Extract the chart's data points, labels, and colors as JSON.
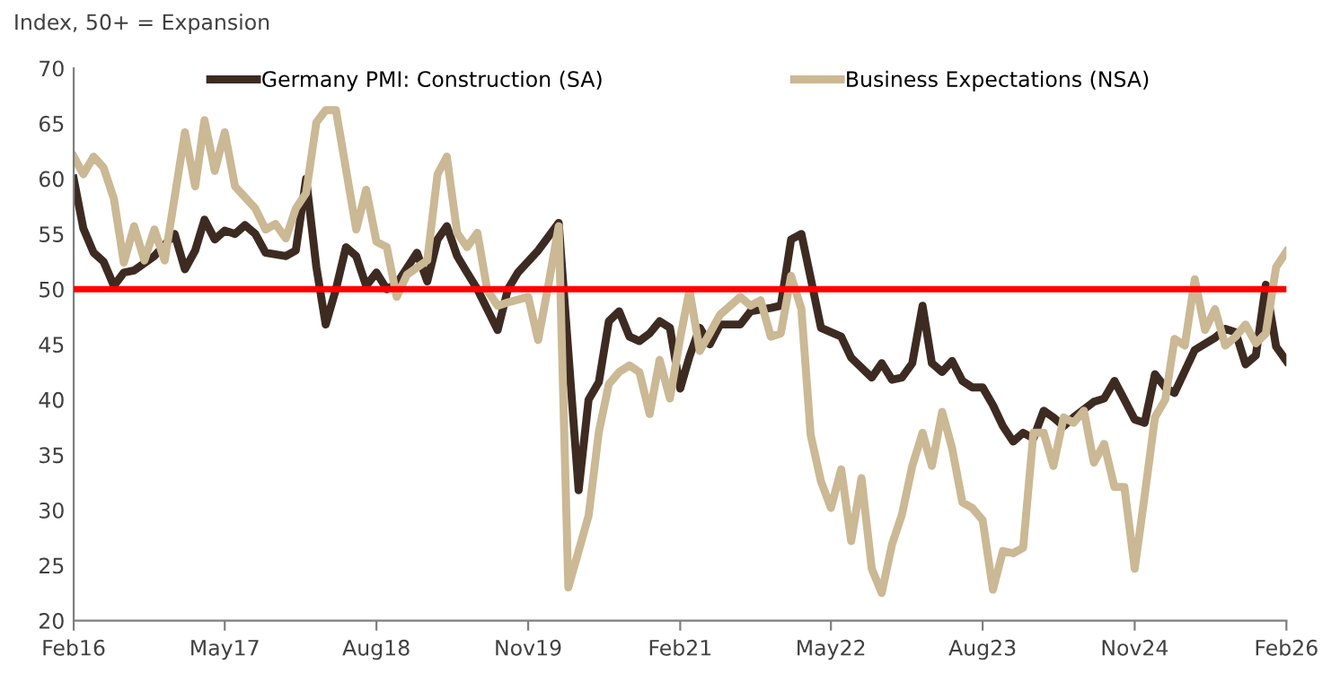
{
  "chart_data": {
    "type": "line",
    "ylabel": "Index, 50+ = Expansion",
    "xlim": [
      "2016-02",
      "2026-02"
    ],
    "xticks": [
      {
        "value": "2016-02",
        "label": "Feb16"
      },
      {
        "value": "2017-05",
        "label": "May17"
      },
      {
        "value": "2018-08",
        "label": "Aug18"
      },
      {
        "value": "2019-11",
        "label": "Nov19"
      },
      {
        "value": "2021-02",
        "label": "Feb21"
      },
      {
        "value": "2022-05",
        "label": "May22"
      },
      {
        "value": "2023-08",
        "label": "Aug23"
      },
      {
        "value": "2024-11",
        "label": "Nov24"
      },
      {
        "value": "2026-02",
        "label": "Feb26"
      }
    ],
    "ylim": [
      20,
      70
    ],
    "yticks": [
      20,
      25,
      30,
      35,
      40,
      45,
      50,
      55,
      60,
      65,
      70
    ],
    "grid": false,
    "legend": "top",
    "marker": "none",
    "line_style": "solid",
    "ref_lines": [
      {
        "axis": "y",
        "value": 50,
        "color": "#ff0000"
      }
    ],
    "series": [
      {
        "name": "Germany PMI: Construction (SA)",
        "color": "#3d2b22",
        "x": [
          "2016-02",
          "2016-03",
          "2016-04",
          "2016-05",
          "2016-06",
          "2016-07",
          "2016-08",
          "2016-10",
          "2016-12",
          "2017-01",
          "2017-02",
          "2017-03",
          "2017-04",
          "2017-05",
          "2017-06",
          "2017-07",
          "2017-08",
          "2017-09",
          "2017-11",
          "2017-12",
          "2018-01",
          "2018-02",
          "2018-03",
          "2018-04",
          "2018-05",
          "2018-06",
          "2018-07",
          "2018-08",
          "2018-09",
          "2018-10",
          "2018-12",
          "2019-01",
          "2019-02",
          "2019-03",
          "2019-04",
          "2019-05",
          "2019-06",
          "2019-08",
          "2019-09",
          "2019-10",
          "2019-12",
          "2020-02",
          "2020-04",
          "2020-05",
          "2020-06",
          "2020-07",
          "2020-08",
          "2020-09",
          "2020-10",
          "2020-11",
          "2020-12",
          "2021-01",
          "2021-02",
          "2021-03",
          "2021-04",
          "2021-05",
          "2021-06",
          "2021-08",
          "2021-09",
          "2021-11",
          "2021-12",
          "2022-01",
          "2022-02",
          "2022-03",
          "2022-04",
          "2022-06",
          "2022-07",
          "2022-09",
          "2022-10",
          "2022-11",
          "2022-12",
          "2023-01",
          "2023-02",
          "2023-03",
          "2023-04",
          "2023-05",
          "2023-06",
          "2023-07",
          "2023-08",
          "2023-09",
          "2023-10",
          "2023-11",
          "2023-12",
          "2024-01",
          "2024-02",
          "2024-03",
          "2024-04",
          "2024-05",
          "2024-07",
          "2024-08",
          "2024-09",
          "2024-10",
          "2024-11",
          "2024-12",
          "2025-01",
          "2025-02",
          "2025-03",
          "2025-05",
          "2025-07",
          "2025-08",
          "2025-09",
          "2025-10",
          "2025-11",
          "2025-12",
          "2026-01",
          "2026-02"
        ],
        "values": [
          60,
          55.5,
          53.3,
          52.5,
          50.3,
          51.5,
          51.7,
          53,
          55,
          51.8,
          53.5,
          56.3,
          54.5,
          55.3,
          55,
          55.8,
          55,
          53.3,
          53,
          53.5,
          60,
          52,
          46.8,
          50,
          53.8,
          53,
          50.3,
          51.5,
          50,
          50.5,
          53.3,
          50.7,
          54.5,
          55.7,
          53,
          51.5,
          50,
          46.3,
          50,
          51.5,
          53.5,
          56,
          31.8,
          40,
          41.6,
          47.1,
          48,
          45.7,
          45.3,
          46,
          47.1,
          46.5,
          41,
          43.9,
          46.5,
          45,
          46.8,
          46.8,
          48,
          48.3,
          48.5,
          54.5,
          55,
          51,
          46.5,
          45.7,
          43.8,
          42,
          43.3,
          41.8,
          42,
          43.3,
          48.5,
          43.3,
          42.5,
          43.5,
          41.7,
          41.1,
          41.1,
          39.5,
          37.6,
          36.2,
          37,
          36.5,
          39,
          38.4,
          37.6,
          38.4,
          39.8,
          40.1,
          41.7,
          40,
          38.2,
          37.9,
          42.3,
          41.1,
          40.6,
          44.5,
          45.6,
          46.4,
          46.1,
          43.2,
          44,
          50.4,
          44.8,
          43.5
        ]
      },
      {
        "name": "Business Expectations (NSA)",
        "color": "#cbb894",
        "x": [
          "2016-02",
          "2016-03",
          "2016-04",
          "2016-05",
          "2016-06",
          "2016-07",
          "2016-08",
          "2016-09",
          "2016-10",
          "2016-11",
          "2017-01",
          "2017-02",
          "2017-03",
          "2017-04",
          "2017-05",
          "2017-06",
          "2017-08",
          "2017-09",
          "2017-10",
          "2017-11",
          "2017-12",
          "2018-01",
          "2018-02",
          "2018-03",
          "2018-04",
          "2018-06",
          "2018-07",
          "2018-08",
          "2018-09",
          "2018-10",
          "2018-11",
          "2019-01",
          "2019-02",
          "2019-03",
          "2019-04",
          "2019-05",
          "2019-06",
          "2019-07",
          "2019-08",
          "2019-09",
          "2019-11",
          "2019-12",
          "2020-01",
          "2020-02",
          "2020-03",
          "2020-04",
          "2020-05",
          "2020-06",
          "2020-07",
          "2020-08",
          "2020-09",
          "2020-10",
          "2020-11",
          "2020-12",
          "2021-01",
          "2021-02",
          "2021-03",
          "2021-04",
          "2021-05",
          "2021-06",
          "2021-08",
          "2021-09",
          "2021-10",
          "2021-11",
          "2021-12",
          "2022-01",
          "2022-02",
          "2022-03",
          "2022-04",
          "2022-05",
          "2022-06",
          "2022-07",
          "2022-08",
          "2022-09",
          "2022-10",
          "2022-11",
          "2022-12",
          "2023-01",
          "2023-02",
          "2023-03",
          "2023-04",
          "2023-05",
          "2023-06",
          "2023-07",
          "2023-08",
          "2023-09",
          "2023-10",
          "2023-11",
          "2023-12",
          "2024-01",
          "2024-02",
          "2024-03",
          "2024-04",
          "2024-05",
          "2024-06",
          "2024-07",
          "2024-08",
          "2024-09",
          "2024-10",
          "2024-11",
          "2024-12",
          "2025-01",
          "2025-02",
          "2025-03",
          "2025-04",
          "2025-05",
          "2025-06",
          "2025-07",
          "2025-08",
          "2025-09",
          "2025-10",
          "2025-11",
          "2025-12",
          "2026-01",
          "2026-02"
        ],
        "values": [
          62,
          60.4,
          62,
          61,
          58.2,
          52.4,
          55.7,
          52.6,
          55.4,
          52.6,
          64.2,
          59.3,
          65.3,
          60.7,
          64.2,
          59.3,
          57.3,
          55.4,
          55.9,
          54.6,
          57.3,
          58.7,
          65.1,
          66.2,
          66.2,
          55.4,
          59,
          54.3,
          53.8,
          49.3,
          51.3,
          52.6,
          60.4,
          62,
          55.1,
          53.8,
          55.1,
          49.9,
          48.5,
          48.8,
          49.3,
          45.4,
          50.4,
          55.7,
          23,
          26.3,
          29.5,
          37.1,
          41.4,
          42.5,
          43.1,
          42.5,
          38.7,
          43.6,
          40.1,
          45.6,
          49.9,
          44.4,
          46,
          47.7,
          49.3,
          48.5,
          49,
          45.7,
          46,
          51.2,
          48.2,
          36.8,
          32.6,
          30.2,
          33.7,
          27.2,
          32.9,
          24.7,
          22.5,
          26.9,
          29.6,
          34,
          37,
          34,
          38.9,
          35.6,
          30.7,
          30.2,
          29.1,
          22.8,
          26.3,
          26.1,
          26.6,
          37,
          37,
          34,
          38.4,
          37.9,
          39,
          34.3,
          36,
          32.1,
          32.1,
          24.7,
          31.3,
          38.4,
          40,
          45.5,
          44.9,
          50.9,
          46.3,
          48.2,
          44.9,
          45.7,
          46.8,
          45.1,
          46,
          52,
          53.4
        ]
      }
    ]
  }
}
